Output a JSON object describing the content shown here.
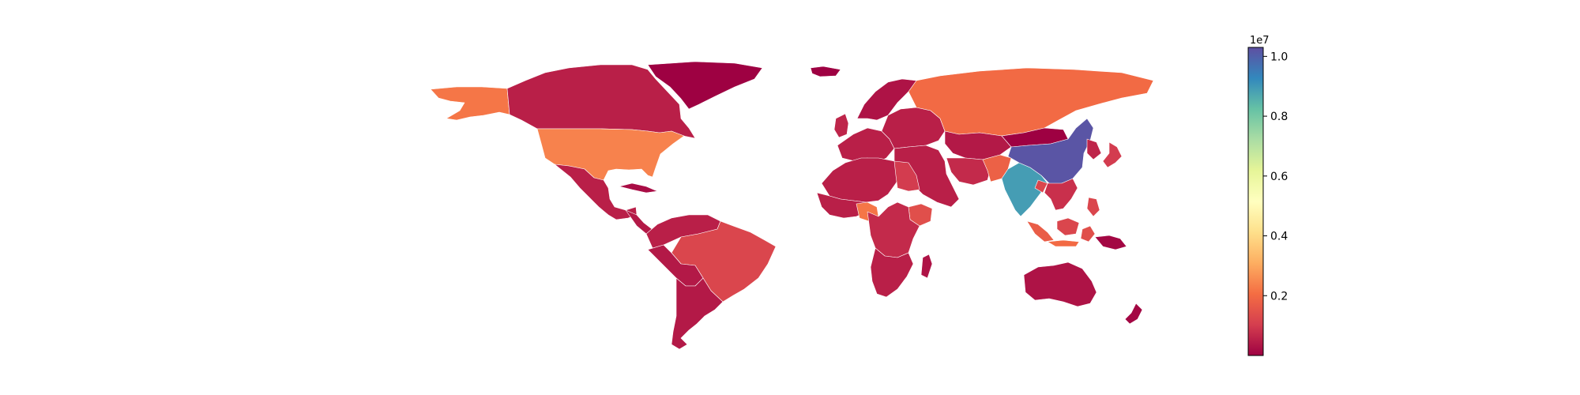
{
  "figure": {
    "kind": "choropleth world map",
    "title": "",
    "colormap": "Spectral",
    "colormap_stops": [
      "#9e0142",
      "#d53e4f",
      "#f46d43",
      "#fdae61",
      "#fee08b",
      "#ffffbf",
      "#e6f598",
      "#abdda4",
      "#66c2a5",
      "#3288bd",
      "#5e4fa2"
    ]
  },
  "colorbar": {
    "exponent_label": "1e7",
    "range": [
      0,
      1.03
    ],
    "tick_values": [
      0.2,
      0.4,
      0.6,
      0.8,
      1.0
    ],
    "tick_labels": [
      "0.2",
      "0.4",
      "0.6",
      "0.8",
      "1.0"
    ]
  },
  "chart_data": {
    "type": "choropleth",
    "value_scale": 10000000,
    "vmin": 0,
    "vmax": 1.03,
    "regions": [
      {
        "id": "greenland",
        "value": 0.0
      },
      {
        "id": "canada",
        "value": 0.05
      },
      {
        "id": "alaska",
        "value": 0.22
      },
      {
        "id": "usa",
        "value": 0.24
      },
      {
        "id": "mexico",
        "value": 0.05
      },
      {
        "id": "central-america",
        "value": 0.04
      },
      {
        "id": "cuba",
        "value": 0.02
      },
      {
        "id": "colombia-venezuela",
        "value": 0.05
      },
      {
        "id": "peru-bolivia",
        "value": 0.04
      },
      {
        "id": "brazil",
        "value": 0.12
      },
      {
        "id": "argentina-chile",
        "value": 0.04
      },
      {
        "id": "iceland",
        "value": 0.0
      },
      {
        "id": "scandinavia",
        "value": 0.03
      },
      {
        "id": "western-europe",
        "value": 0.05
      },
      {
        "id": "uk",
        "value": 0.06
      },
      {
        "id": "eastern-europe",
        "value": 0.05
      },
      {
        "id": "russia",
        "value": 0.2
      },
      {
        "id": "turkey-middle-east",
        "value": 0.05
      },
      {
        "id": "central-asia",
        "value": 0.04
      },
      {
        "id": "iran",
        "value": 0.07
      },
      {
        "id": "pakistan",
        "value": 0.18
      },
      {
        "id": "india",
        "value": 0.89
      },
      {
        "id": "china",
        "value": 1.02
      },
      {
        "id": "mongolia",
        "value": 0.0
      },
      {
        "id": "korea",
        "value": 0.06
      },
      {
        "id": "japan",
        "value": 0.1
      },
      {
        "id": "southeast-asia",
        "value": 0.08
      },
      {
        "id": "bangladesh",
        "value": 0.12
      },
      {
        "id": "indonesia-sumatra",
        "value": 0.17
      },
      {
        "id": "indonesia-borneo",
        "value": 0.12
      },
      {
        "id": "indonesia-java",
        "value": 0.2
      },
      {
        "id": "indonesia-east",
        "value": 0.14
      },
      {
        "id": "philippines",
        "value": 0.12
      },
      {
        "id": "north-africa",
        "value": 0.05
      },
      {
        "id": "egypt",
        "value": 0.1
      },
      {
        "id": "west-africa",
        "value": 0.05
      },
      {
        "id": "nigeria",
        "value": 0.22
      },
      {
        "id": "ethiopia",
        "value": 0.14
      },
      {
        "id": "central-africa",
        "value": 0.07
      },
      {
        "id": "southern-africa",
        "value": 0.05
      },
      {
        "id": "madagascar",
        "value": 0.03
      },
      {
        "id": "australia",
        "value": 0.03
      },
      {
        "id": "new-zealand",
        "value": 0.01
      },
      {
        "id": "papua-new-guinea",
        "value": 0.01
      }
    ]
  }
}
